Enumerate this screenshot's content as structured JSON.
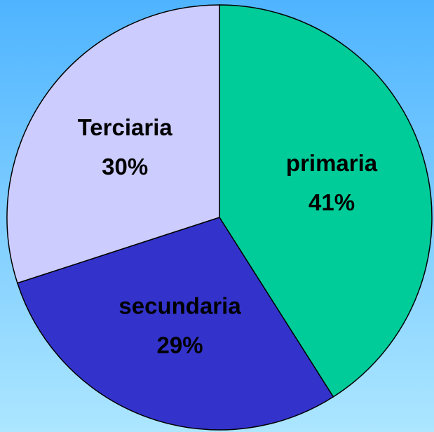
{
  "chart_data": {
    "type": "pie",
    "categories": [
      "primaria",
      "secundaria",
      "Terciaria"
    ],
    "values": [
      41,
      29,
      30
    ],
    "value_labels": [
      "41%",
      "29%",
      "30%"
    ],
    "colors": [
      "#00cc99",
      "#3333cc",
      "#ccccff"
    ]
  }
}
